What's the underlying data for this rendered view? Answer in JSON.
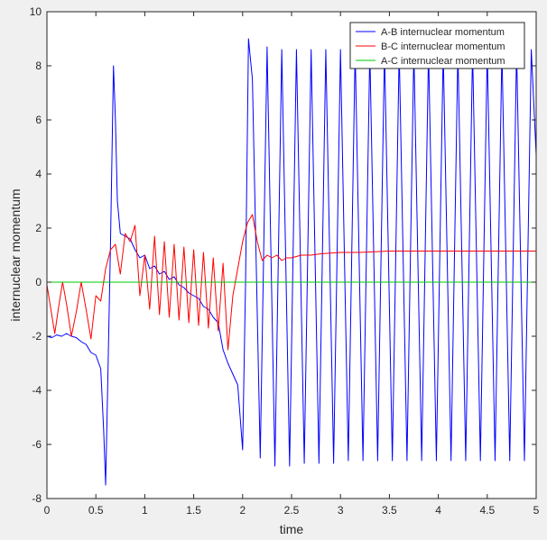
{
  "chart_data": {
    "type": "line",
    "title": "",
    "xlabel": "time",
    "ylabel": "internuclear momentum",
    "xlim": [
      0,
      5
    ],
    "ylim": [
      -8,
      10
    ],
    "grid": false,
    "legend_position": "top-right",
    "x_ticks": [
      0,
      0.5,
      1,
      1.5,
      2,
      2.5,
      3,
      3.5,
      4,
      4.5,
      5
    ],
    "x_tick_labels": [
      "0",
      "0.5",
      "1",
      "1.5",
      "2",
      "2.5",
      "3",
      "3.5",
      "4",
      "4.5",
      "5"
    ],
    "y_ticks": [
      -8,
      -6,
      -4,
      -2,
      0,
      2,
      4,
      6,
      8,
      10
    ],
    "y_tick_labels": [
      "-8",
      "-6",
      "-4",
      "-2",
      "0",
      "2",
      "4",
      "6",
      "8",
      "10"
    ],
    "series": [
      {
        "name": "A-B internuclear momentum",
        "color": "#0000ff",
        "x": [
          0,
          0.05,
          0.1,
          0.15,
          0.2,
          0.25,
          0.3,
          0.35,
          0.4,
          0.45,
          0.5,
          0.55,
          0.58,
          0.6,
          0.62,
          0.65,
          0.68,
          0.7,
          0.72,
          0.75,
          0.8,
          0.85,
          0.9,
          0.95,
          1.0,
          1.05,
          1.1,
          1.15,
          1.2,
          1.25,
          1.3,
          1.35,
          1.4,
          1.45,
          1.5,
          1.55,
          1.6,
          1.65,
          1.7,
          1.75,
          1.8,
          1.85,
          1.9,
          1.95,
          2.0,
          2.03,
          2.06,
          2.1,
          2.18,
          2.25,
          2.33,
          2.4,
          2.48,
          2.55,
          2.63,
          2.7,
          2.78,
          2.85,
          2.93,
          3.0,
          3.08,
          3.15,
          3.23,
          3.3,
          3.38,
          3.45,
          3.53,
          3.6,
          3.68,
          3.75,
          3.83,
          3.9,
          3.98,
          4.05,
          4.13,
          4.2,
          4.28,
          4.35,
          4.43,
          4.5,
          4.58,
          4.65,
          4.73,
          4.8,
          4.88,
          4.95,
          5.0
        ],
        "values": [
          -2.0,
          -2.05,
          -1.95,
          -2.0,
          -1.9,
          -2.0,
          -2.05,
          -2.2,
          -2.3,
          -2.6,
          -2.7,
          -3.2,
          -5.5,
          -7.5,
          -4.0,
          1.5,
          8.0,
          6.0,
          3.0,
          1.8,
          1.7,
          1.6,
          1.2,
          0.9,
          1.0,
          0.5,
          0.6,
          0.3,
          0.4,
          0.1,
          0.2,
          -0.1,
          -0.2,
          -0.4,
          -0.5,
          -0.6,
          -0.9,
          -1.0,
          -1.3,
          -1.5,
          -2.5,
          -3.0,
          -3.4,
          -3.8,
          -6.2,
          0.0,
          9.0,
          7.5,
          -6.5,
          8.7,
          -6.8,
          8.6,
          -6.8,
          8.6,
          -6.7,
          8.6,
          -6.7,
          8.6,
          -6.7,
          8.6,
          -6.6,
          8.6,
          -6.6,
          8.6,
          -6.6,
          8.6,
          -6.6,
          8.6,
          -6.6,
          8.6,
          -6.6,
          8.6,
          -6.6,
          8.6,
          -6.6,
          8.6,
          -6.6,
          8.6,
          -6.6,
          8.6,
          -6.6,
          8.6,
          -6.6,
          8.6,
          -6.6,
          8.6,
          4.7
        ]
      },
      {
        "name": "B-C internuclear momentum",
        "color": "#ff0000",
        "x": [
          0,
          0.04,
          0.08,
          0.12,
          0.16,
          0.2,
          0.25,
          0.3,
          0.35,
          0.4,
          0.45,
          0.5,
          0.55,
          0.6,
          0.65,
          0.7,
          0.75,
          0.8,
          0.85,
          0.9,
          0.95,
          1.0,
          1.05,
          1.1,
          1.15,
          1.2,
          1.25,
          1.3,
          1.35,
          1.4,
          1.45,
          1.5,
          1.55,
          1.6,
          1.65,
          1.7,
          1.75,
          1.8,
          1.85,
          1.9,
          1.95,
          2.0,
          2.05,
          2.1,
          2.15,
          2.2,
          2.25,
          2.3,
          2.35,
          2.4,
          2.45,
          2.5,
          2.6,
          2.7,
          2.8,
          3.0,
          3.2,
          3.5,
          4.0,
          4.5,
          5.0
        ],
        "values": [
          -0.1,
          -1.0,
          -1.9,
          -0.9,
          0.0,
          -0.8,
          -2.0,
          -1.1,
          0.0,
          -1.0,
          -2.1,
          -0.5,
          -0.7,
          0.5,
          1.2,
          1.4,
          0.3,
          1.8,
          1.5,
          2.1,
          -0.5,
          1.0,
          -1.0,
          1.7,
          -1.2,
          1.5,
          -1.3,
          1.4,
          -1.4,
          1.3,
          -1.5,
          1.2,
          -1.6,
          1.1,
          -1.7,
          0.9,
          -1.8,
          0.7,
          -2.5,
          -0.5,
          0.5,
          1.5,
          2.2,
          2.5,
          1.5,
          0.8,
          1.0,
          0.9,
          1.0,
          0.8,
          0.9,
          0.9,
          1.0,
          1.0,
          1.05,
          1.1,
          1.1,
          1.15,
          1.15,
          1.15,
          1.15
        ]
      },
      {
        "name": "A-C internuclear momentum",
        "color": "#00c800",
        "x": [
          0,
          5
        ],
        "values": [
          0,
          0
        ]
      }
    ]
  }
}
